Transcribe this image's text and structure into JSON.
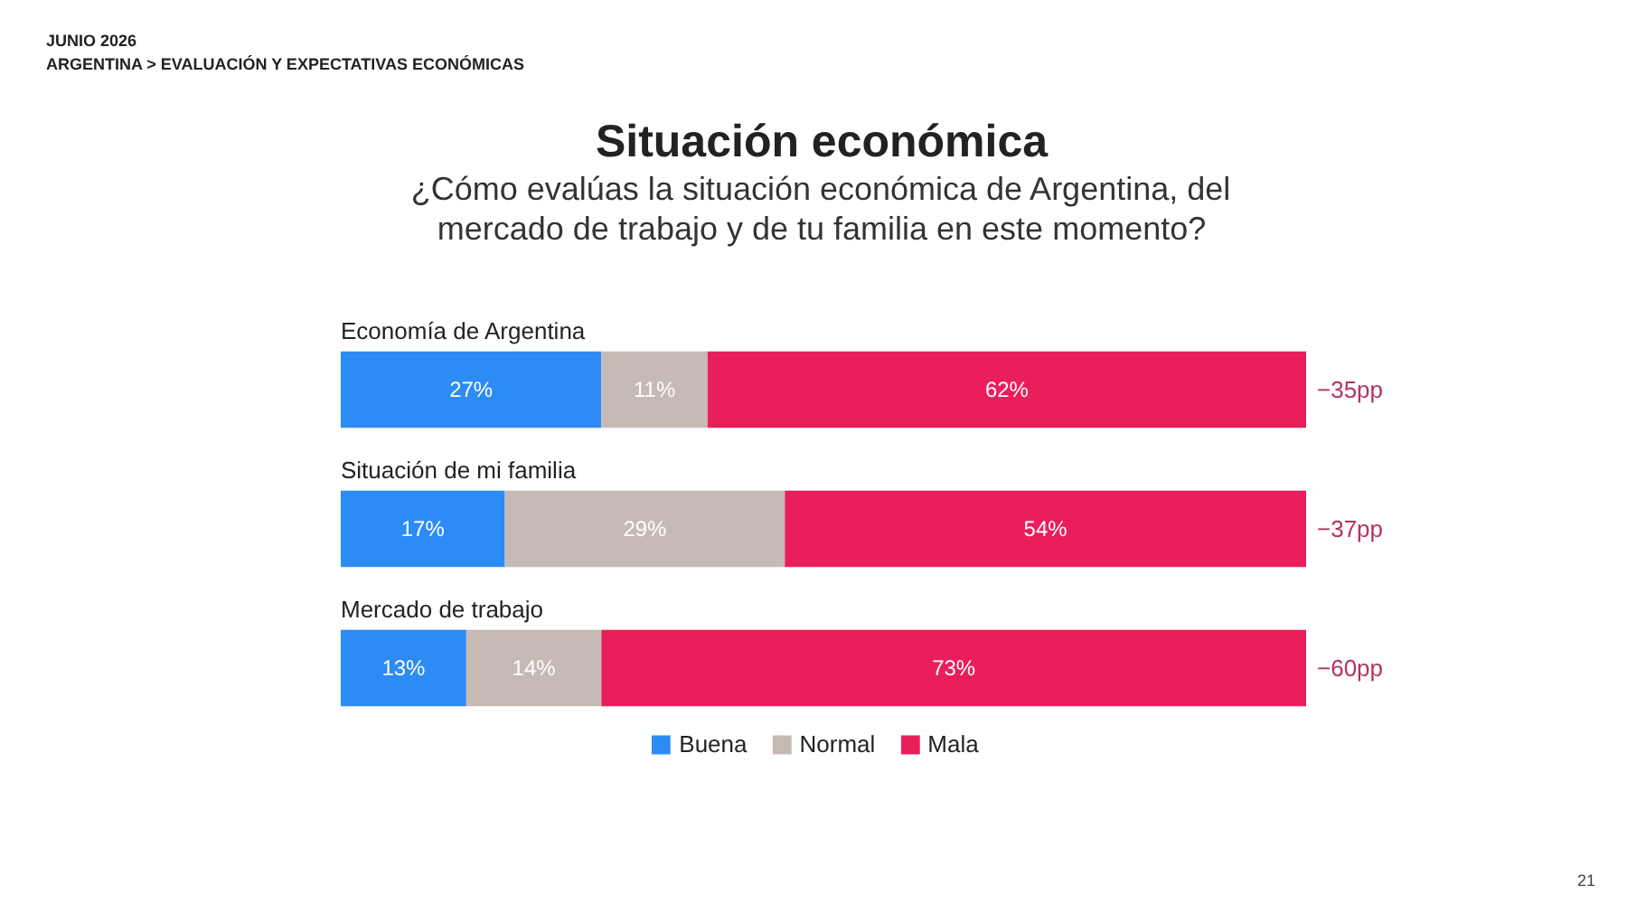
{
  "chart_data": {
    "type": "bar",
    "orientation": "horizontal",
    "stacked": true,
    "title": "Situación económica",
    "subtitle": "¿Cómo evalúas la situación económica de Argentina, del mercado de trabajo y de tu familia en este momento?",
    "categories": [
      "Economía de Argentina",
      "Situación de mi familia",
      "Mercado de trabajo"
    ],
    "series": [
      {
        "name": "Buena",
        "color": "#2d8bf6",
        "values": [
          27,
          17,
          13
        ],
        "value_labels": [
          "27%",
          "17%",
          "13%"
        ]
      },
      {
        "name": "Normal",
        "color": "#c6bbb4",
        "values": [
          11,
          29,
          14
        ],
        "value_labels": [
          "11%",
          "29%",
          "14%"
        ]
      },
      {
        "name": "Mala",
        "color": "#e91e5b",
        "values": [
          62,
          54,
          73
        ],
        "value_labels": [
          "62%",
          "54%",
          "73%"
        ]
      }
    ],
    "xlim": [
      0,
      100
    ],
    "tick_labels": "y",
    "legend": "bottom",
    "annotations": [
      "JUNIO 2026",
      "ARGENTINA > EVALUACIÓN Y EXPECTATIVAS ECONÓMICAS",
      "−35pp",
      "−37pp",
      "−60pp",
      "21"
    ]
  }
}
